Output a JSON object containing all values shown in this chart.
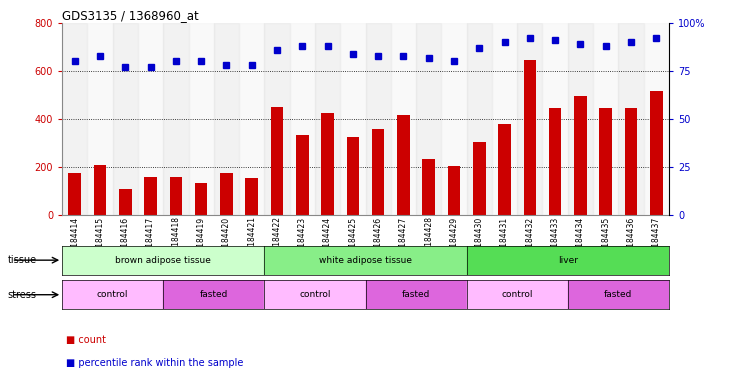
{
  "title": "GDS3135 / 1368960_at",
  "samples": [
    "GSM184414",
    "GSM184415",
    "GSM184416",
    "GSM184417",
    "GSM184418",
    "GSM184419",
    "GSM184420",
    "GSM184421",
    "GSM184422",
    "GSM184423",
    "GSM184424",
    "GSM184425",
    "GSM184426",
    "GSM184427",
    "GSM184428",
    "GSM184429",
    "GSM184430",
    "GSM184431",
    "GSM184432",
    "GSM184433",
    "GSM184434",
    "GSM184435",
    "GSM184436",
    "GSM184437"
  ],
  "count_values": [
    175,
    210,
    110,
    160,
    160,
    135,
    175,
    155,
    450,
    335,
    425,
    325,
    360,
    415,
    235,
    205,
    305,
    380,
    645,
    445,
    495,
    445,
    445,
    515
  ],
  "percentile_values": [
    80,
    83,
    77,
    77,
    80,
    80,
    78,
    78,
    86,
    88,
    88,
    84,
    83,
    83,
    82,
    80,
    87,
    90,
    92,
    91,
    89,
    88,
    90,
    92
  ],
  "ylim_left": [
    0,
    800
  ],
  "ylim_right": [
    0,
    100
  ],
  "yticks_left": [
    0,
    200,
    400,
    600,
    800
  ],
  "yticks_right": [
    0,
    25,
    50,
    75,
    100
  ],
  "yticklabels_right": [
    "0",
    "25",
    "50",
    "75",
    "100%"
  ],
  "bar_color": "#cc0000",
  "dot_color": "#0000cc",
  "grid_values": [
    200,
    400,
    600
  ],
  "tissue_groups": [
    {
      "label": "brown adipose tissue",
      "start": 0,
      "end": 8,
      "color": "#ccffcc"
    },
    {
      "label": "white adipose tissue",
      "start": 8,
      "end": 16,
      "color": "#88ee88"
    },
    {
      "label": "liver",
      "start": 16,
      "end": 24,
      "color": "#55dd55"
    }
  ],
  "stress_groups": [
    {
      "label": "control",
      "start": 0,
      "end": 4,
      "color": "#ffbbff"
    },
    {
      "label": "fasted",
      "start": 4,
      "end": 8,
      "color": "#dd66dd"
    },
    {
      "label": "control",
      "start": 8,
      "end": 12,
      "color": "#ffbbff"
    },
    {
      "label": "fasted",
      "start": 12,
      "end": 16,
      "color": "#dd66dd"
    },
    {
      "label": "control",
      "start": 16,
      "end": 20,
      "color": "#ffbbff"
    },
    {
      "label": "fasted",
      "start": 20,
      "end": 24,
      "color": "#dd66dd"
    }
  ],
  "legend_count_label": "count",
  "legend_pct_label": "percentile rank within the sample",
  "tissue_label": "tissue",
  "stress_label": "stress"
}
